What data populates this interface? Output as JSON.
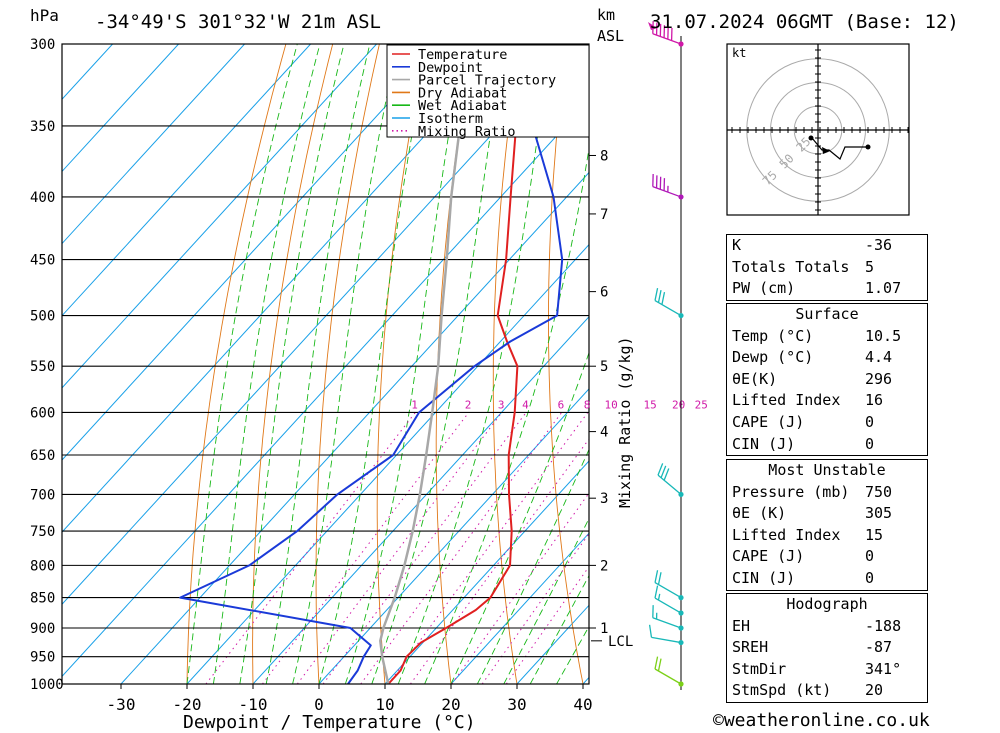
{
  "header": {
    "pressure_unit": "hPa",
    "location": "-34°49'S 301°32'W 21m ASL",
    "height_unit_line1": "km",
    "height_unit_line2": "ASL",
    "datetime": "31.07.2024 06GMT (Base: 12)"
  },
  "chart_data": {
    "type": "line",
    "title": "-34°49'S 301°32'W 21m ASL",
    "xlabel": "Dewpoint / Temperature (°C)",
    "ylabel": "hPa",
    "y2label": "Mixing Ratio (g/kg)",
    "xlim": [
      -40,
      40
    ],
    "ylim": [
      1000,
      300
    ],
    "x_ticks": [
      -30,
      -20,
      -10,
      0,
      10,
      20,
      30,
      40
    ],
    "pressure_levels": [
      300,
      350,
      400,
      450,
      500,
      550,
      600,
      650,
      700,
      750,
      800,
      850,
      900,
      950,
      1000
    ],
    "km_ticks": [
      {
        "label": "8",
        "p": 370
      },
      {
        "label": "7",
        "p": 413
      },
      {
        "label": "6",
        "p": 478
      },
      {
        "label": "5",
        "p": 550
      },
      {
        "label": "4",
        "p": 622
      },
      {
        "label": "3",
        "p": 705
      },
      {
        "label": "2",
        "p": 800
      },
      {
        "label": "1",
        "p": 900
      }
    ],
    "lcl": {
      "label": "LCL",
      "p": 922
    },
    "mixing_ratio_labels": [
      "1",
      "2",
      "3",
      "4",
      "6",
      "8",
      "10",
      "15",
      "20",
      "25"
    ],
    "legend": [
      "Temperature",
      "Dewpoint",
      "Parcel Trajectory",
      "Dry Adiabat",
      "Wet Adiabat",
      "Isotherm",
      "Mixing Ratio"
    ],
    "legend_position": "top-right",
    "series": [
      {
        "name": "Temperature",
        "color": "#e02020",
        "points": [
          [
            1000,
            10.5
          ],
          [
            975,
            10.5
          ],
          [
            950,
            9.5
          ],
          [
            925,
            9.7
          ],
          [
            900,
            11.5
          ],
          [
            870,
            13.5
          ],
          [
            850,
            14.0
          ],
          [
            800,
            12.5
          ],
          [
            750,
            8.0
          ],
          [
            700,
            2.5
          ],
          [
            650,
            -3.0
          ],
          [
            600,
            -8.0
          ],
          [
            550,
            -14.0
          ],
          [
            525,
            -19.0
          ],
          [
            500,
            -24.0
          ],
          [
            450,
            -30.5
          ],
          [
            400,
            -38.5
          ],
          [
            350,
            -47.5
          ],
          [
            300,
            -55.0
          ]
        ]
      },
      {
        "name": "Dewpoint",
        "color": "#1a3ad8",
        "points": [
          [
            1000,
            4.4
          ],
          [
            975,
            4.0
          ],
          [
            950,
            3.0
          ],
          [
            930,
            2.5
          ],
          [
            900,
            -3.0
          ],
          [
            850,
            -33.0
          ],
          [
            800,
            -27.0
          ],
          [
            750,
            -24.5
          ],
          [
            700,
            -23.5
          ],
          [
            650,
            -20.5
          ],
          [
            600,
            -22.5
          ],
          [
            550,
            -20.5
          ],
          [
            525,
            -18.5
          ],
          [
            500,
            -15.0
          ],
          [
            450,
            -22.0
          ],
          [
            400,
            -32.0
          ],
          [
            350,
            -45.0
          ],
          [
            300,
            -56.0
          ]
        ]
      },
      {
        "name": "Parcel Trajectory",
        "color": "#a8a8a8",
        "points": [
          [
            1000,
            10.5
          ],
          [
            950,
            5.8
          ],
          [
            922,
            3.3
          ],
          [
            900,
            2.0
          ],
          [
            850,
            -0.5
          ],
          [
            800,
            -3.5
          ],
          [
            750,
            -7.0
          ],
          [
            700,
            -11.0
          ],
          [
            650,
            -15.5
          ],
          [
            600,
            -20.5
          ],
          [
            550,
            -26.0
          ],
          [
            500,
            -32.5
          ],
          [
            450,
            -39.5
          ],
          [
            400,
            -47.5
          ],
          [
            350,
            -56.0
          ],
          [
            320,
            -61.5
          ]
        ]
      }
    ]
  },
  "hodograph": {
    "unit": "kt",
    "ring_labels": [
      "25",
      "50",
      "75"
    ]
  },
  "wind_barbs": [
    {
      "p": 300,
      "dir": 290,
      "spd": 60
    },
    {
      "p": 400,
      "dir": 290,
      "spd": 45
    },
    {
      "p": 500,
      "dir": 300,
      "spd": 30
    },
    {
      "p": 700,
      "dir": 310,
      "spd": 30
    },
    {
      "p": 850,
      "dir": 300,
      "spd": 20
    },
    {
      "p": 875,
      "dir": 300,
      "spd": 15
    },
    {
      "p": 900,
      "dir": 290,
      "spd": 15
    },
    {
      "p": 925,
      "dir": 280,
      "spd": 10
    },
    {
      "p": 1000,
      "dir": 300,
      "spd": 20
    }
  ],
  "indices": {
    "rows": [
      {
        "label": "K",
        "value": "-36"
      },
      {
        "label": "Totals Totals",
        "value": "5"
      },
      {
        "label": "PW (cm)",
        "value": "1.07"
      }
    ]
  },
  "surface": {
    "title": "Surface",
    "rows": [
      {
        "label": "Temp (°C)",
        "value": "10.5"
      },
      {
        "label": "Dewp (°C)",
        "value": "4.4"
      },
      {
        "label": "θE(K)",
        "value": "296"
      },
      {
        "label": "Lifted Index",
        "value": "16"
      },
      {
        "label": "CAPE (J)",
        "value": "0"
      },
      {
        "label": "CIN (J)",
        "value": "0"
      }
    ]
  },
  "most_unstable": {
    "title": "Most Unstable",
    "rows": [
      {
        "label": "Pressure (mb)",
        "value": "750"
      },
      {
        "label": "θE (K)",
        "value": "305"
      },
      {
        "label": "Lifted Index",
        "value": "15"
      },
      {
        "label": "CAPE (J)",
        "value": "0"
      },
      {
        "label": "CIN (J)",
        "value": "0"
      }
    ]
  },
  "hodograph_table": {
    "title": "Hodograph",
    "rows": [
      {
        "label": "EH",
        "value": "-188"
      },
      {
        "label": "SREH",
        "value": "-87"
      },
      {
        "label": "StmDir",
        "value": "341°"
      },
      {
        "label": "StmSpd (kt)",
        "value": "20"
      }
    ]
  },
  "footer": {
    "text": "©weatheronline.co.uk"
  },
  "colors": {
    "temperature": "#e02020",
    "dewpoint": "#1a3ad8",
    "parcel": "#a8a8a8",
    "dry_adiabat": "#e07818",
    "wet_adiabat": "#18b818",
    "isotherm": "#18a0e8",
    "mixing_ratio": "#d018a8",
    "wind": "#18b8b8"
  }
}
